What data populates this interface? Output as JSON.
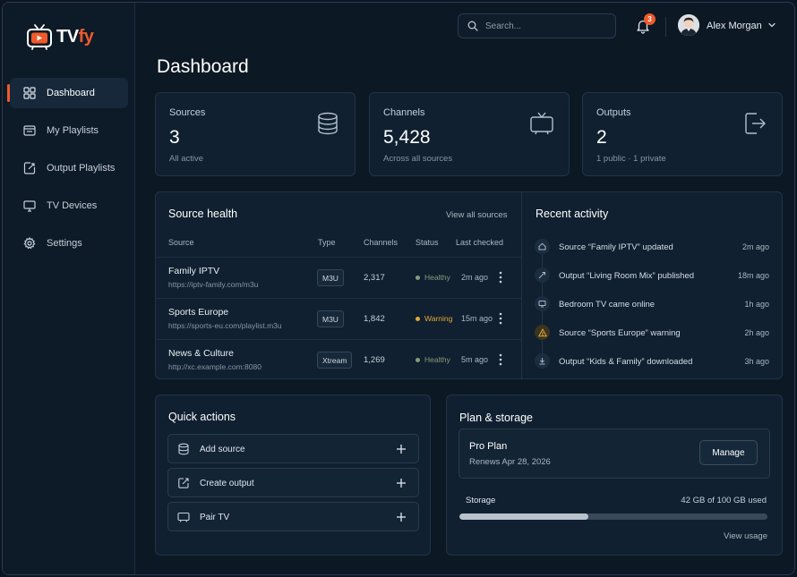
{
  "brand": {
    "name_main": "TV",
    "name_accent": "fy"
  },
  "nav": {
    "items": [
      {
        "label": "Dashboard",
        "icon": "grid-icon",
        "active": true
      },
      {
        "label": "My Playlists",
        "icon": "playlist-icon",
        "active": false
      },
      {
        "label": "Output Playlists",
        "icon": "export-icon",
        "active": false
      },
      {
        "label": "TV Devices",
        "icon": "monitor-icon",
        "active": false
      },
      {
        "label": "Settings",
        "icon": "gear-icon",
        "active": false
      }
    ]
  },
  "header": {
    "search_placeholder": "Search...",
    "notifications_count": "3",
    "user_name": "Alex Morgan"
  },
  "page": {
    "title": "Dashboard"
  },
  "stats": [
    {
      "label": "Sources",
      "value": "3",
      "sub": "All active",
      "icon": "database-icon"
    },
    {
      "label": "Channels",
      "value": "5,428",
      "sub": "Across all sources",
      "icon": "tv-icon"
    },
    {
      "label": "Outputs",
      "value": "2",
      "sub": "1 public · 1 private",
      "icon": "output-icon"
    }
  ],
  "source_health": {
    "title": "Source health",
    "view_all": "View all sources",
    "columns": {
      "source": "Source",
      "type": "Type",
      "channels": "Channels",
      "status": "Status",
      "last_checked": "Last checked"
    },
    "rows": [
      {
        "name": "Family IPTV",
        "url": "https://iptv-family.com/m3u",
        "type": "M3U",
        "channels": "2,317",
        "status": "Healthy",
        "status_color": "#8a9a7a",
        "last_checked": "2m ago"
      },
      {
        "name": "Sports Europe",
        "url": "https://sports-eu.com/playlist.m3u",
        "type": "M3U",
        "channels": "1,842",
        "status": "Warning",
        "status_color": "#e2a93b",
        "last_checked": "15m ago"
      },
      {
        "name": "News & Culture",
        "url": "http://xc.example.com:8080",
        "type": "Xtream",
        "channels": "1,269",
        "status": "Healthy",
        "status_color": "#8a9a7a",
        "last_checked": "5m ago"
      }
    ]
  },
  "recent_activity": {
    "title": "Recent activity",
    "items": [
      {
        "text": "Source “Family IPTV” updated",
        "time": "2m ago",
        "icon": "home-icon"
      },
      {
        "text": "Output “Living Room Mix” published",
        "time": "18m ago",
        "icon": "share-icon"
      },
      {
        "text": "Bedroom TV came online",
        "time": "1h ago",
        "icon": "monitor-icon"
      },
      {
        "text": "Source “Sports Europe” warning",
        "time": "2h ago",
        "icon": "warning-icon"
      },
      {
        "text": "Output “Kids & Family” downloaded",
        "time": "3h ago",
        "icon": "download-icon"
      }
    ]
  },
  "quick_actions": {
    "title": "Quick actions",
    "items": [
      {
        "label": "Add source",
        "icon": "database-icon"
      },
      {
        "label": "Create output",
        "icon": "external-link-icon"
      },
      {
        "label": "Pair TV",
        "icon": "tv-icon"
      }
    ]
  },
  "plan": {
    "title": "Plan & storage",
    "plan_name": "Pro Plan",
    "renews": "Renews Apr 28, 2026",
    "manage_label": "Manage",
    "storage_label": "Storage",
    "storage_used": "42 GB of 100 GB used",
    "storage_fraction": 0.42,
    "view_usage": "View usage"
  },
  "colors": {
    "accent": "#ef5a2a",
    "background": "#0c1824",
    "card": "#102030"
  }
}
